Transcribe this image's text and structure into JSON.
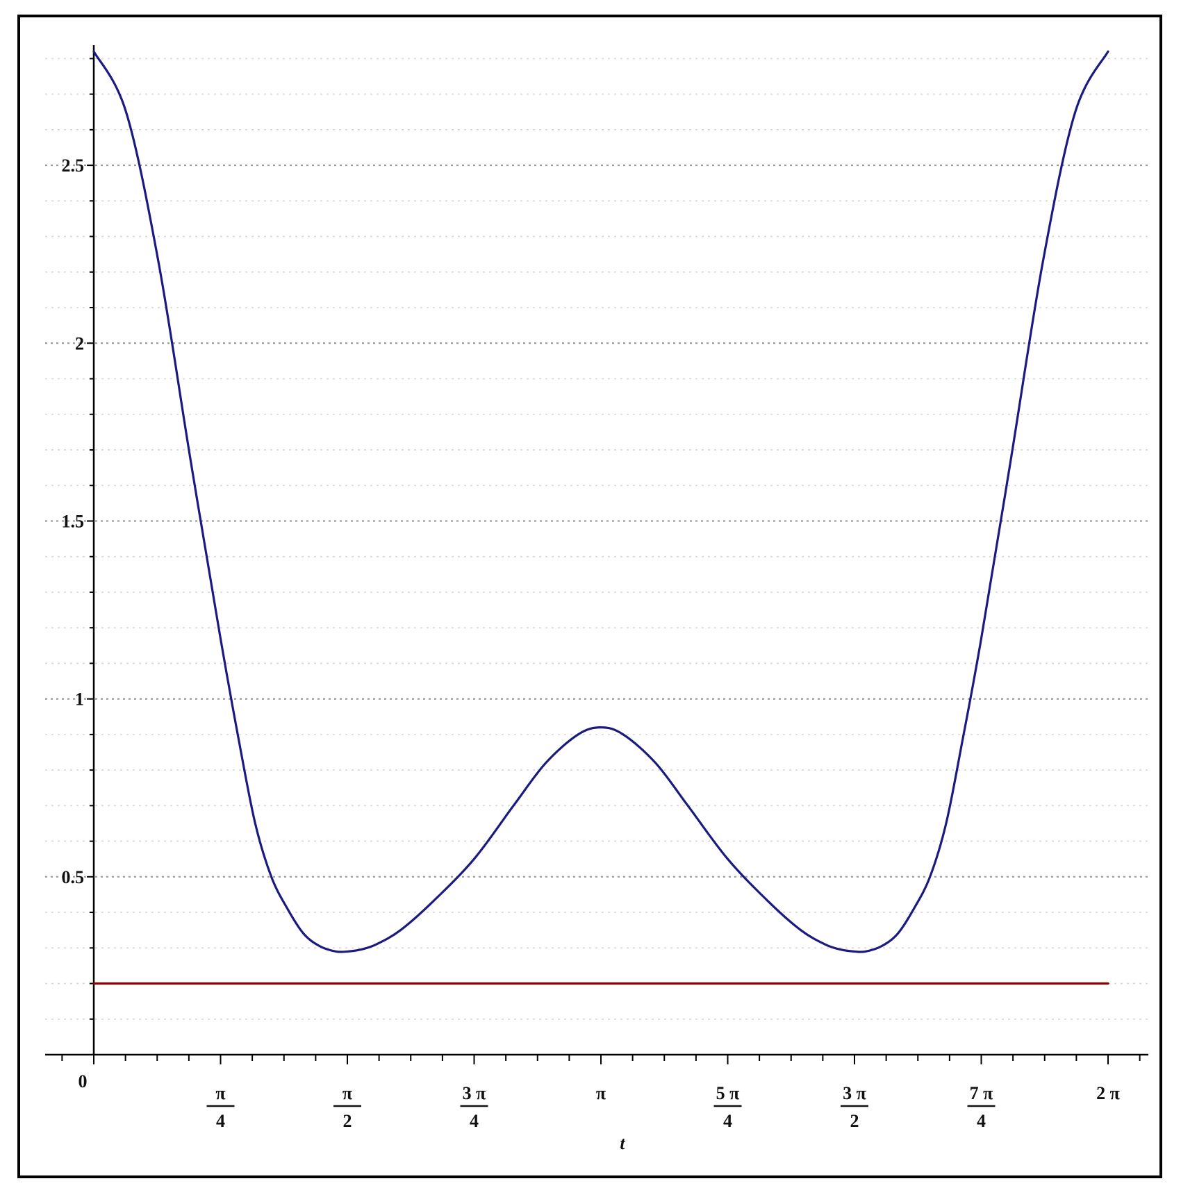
{
  "chart_data": {
    "type": "line",
    "xlabel": "t",
    "ylabel": "",
    "xlim": [
      0,
      6.2832
    ],
    "ylim": [
      0,
      2.83
    ],
    "grid": true,
    "x_ticks": [
      {
        "value": 0,
        "label": "0"
      },
      {
        "value": 0.7854,
        "num": "π",
        "den": "4"
      },
      {
        "value": 1.5708,
        "num": "π",
        "den": "2"
      },
      {
        "value": 2.3562,
        "num": "3 π",
        "den": "4"
      },
      {
        "value": 3.1416,
        "label": "π"
      },
      {
        "value": 3.927,
        "num": "5 π",
        "den": "4"
      },
      {
        "value": 4.7124,
        "num": "3 π",
        "den": "2"
      },
      {
        "value": 5.4978,
        "num": "7 π",
        "den": "4"
      },
      {
        "value": 6.2832,
        "label": "2 π"
      }
    ],
    "y_ticks": [
      {
        "value": 0.5,
        "label": "0.5"
      },
      {
        "value": 1.0,
        "label": "1"
      },
      {
        "value": 1.5,
        "label": "1.5"
      },
      {
        "value": 2.0,
        "label": "2"
      },
      {
        "value": 2.5,
        "label": "2.5"
      }
    ],
    "series": [
      {
        "color": "#1a1a80",
        "x": [
          0,
          0.2,
          0.4,
          0.6,
          0.785,
          0.9,
          1.0,
          1.1,
          1.2,
          1.3,
          1.4,
          1.5,
          1.571,
          1.65,
          1.75,
          1.9,
          2.1,
          2.356,
          2.6,
          2.8,
          3.0,
          3.1416,
          3.28,
          3.48,
          3.68,
          3.927,
          4.18,
          4.38,
          4.53,
          4.63,
          4.7124,
          4.78,
          4.88,
          4.98,
          5.08,
          5.18,
          5.28,
          5.38,
          5.4978,
          5.68,
          5.88,
          6.08,
          6.2832
        ],
        "y": [
          2.82,
          2.65,
          2.23,
          1.67,
          1.17,
          0.88,
          0.65,
          0.5,
          0.41,
          0.34,
          0.305,
          0.29,
          0.29,
          0.295,
          0.31,
          0.35,
          0.43,
          0.55,
          0.7,
          0.82,
          0.9,
          0.92,
          0.9,
          0.82,
          0.7,
          0.55,
          0.43,
          0.35,
          0.31,
          0.295,
          0.29,
          0.29,
          0.305,
          0.34,
          0.41,
          0.5,
          0.65,
          0.88,
          1.17,
          1.67,
          2.23,
          2.65,
          2.82
        ]
      },
      {
        "color": "#8b0000",
        "x": [
          0,
          6.2832
        ],
        "y": [
          0.2,
          0.2
        ]
      }
    ]
  }
}
